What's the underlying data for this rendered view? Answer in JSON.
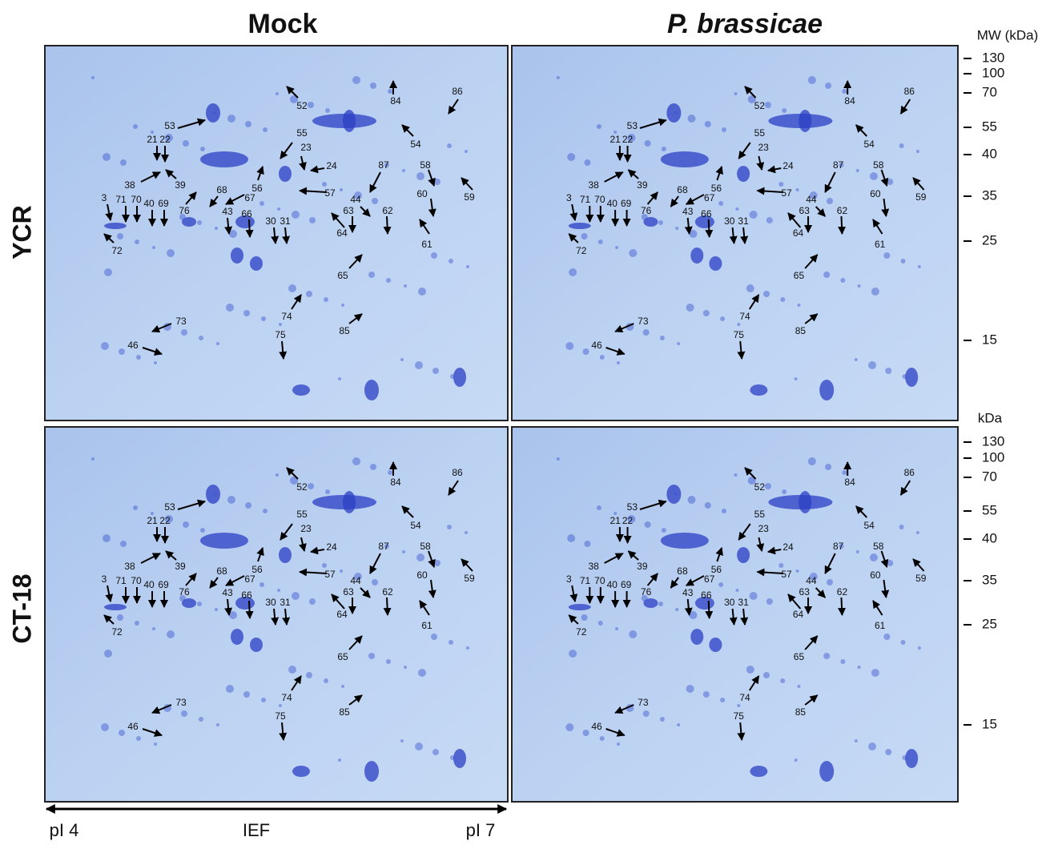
{
  "column_titles": [
    "Mock",
    "P. brassicae"
  ],
  "row_labels": [
    "YCR",
    "CT-18"
  ],
  "mw_axis_top": {
    "title": "MW (kDa)",
    "labels": [
      "130",
      "100",
      "70",
      "55",
      "40",
      "35",
      "25",
      "15"
    ]
  },
  "mw_axis_bottom": {
    "title": "kDa",
    "labels": [
      "130",
      "100",
      "70",
      "55",
      "40",
      "35",
      "25",
      "15"
    ]
  },
  "ief_axis": {
    "left": "pI 4",
    "center": "IEF",
    "right": "pI 7"
  },
  "spot_labels": [
    "52",
    "84",
    "86",
    "53",
    "54",
    "55",
    "23",
    "24",
    "21",
    "22",
    "38",
    "39",
    "87",
    "58",
    "59",
    "56",
    "57",
    "68",
    "67",
    "60",
    "44",
    "76",
    "3",
    "71",
    "70",
    "40",
    "69",
    "43",
    "66",
    "30",
    "31",
    "63",
    "62",
    "64",
    "61",
    "72",
    "65",
    "74",
    "73",
    "85",
    "46",
    "75"
  ]
}
